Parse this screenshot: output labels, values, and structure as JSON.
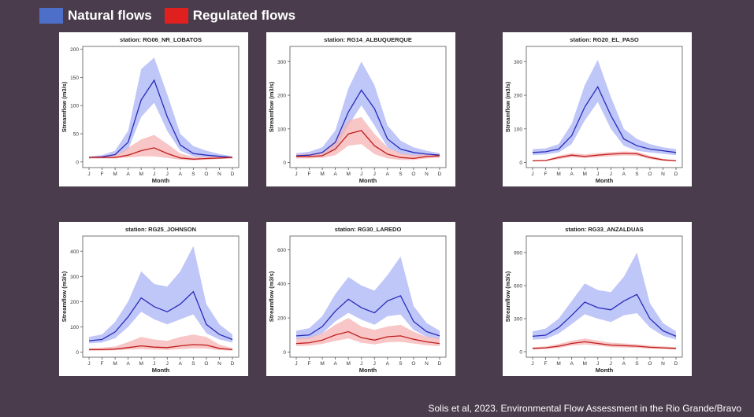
{
  "legend": {
    "items": [
      {
        "label": "Natural flows",
        "color": "#4e6fc9"
      },
      {
        "label": "Regulated flows",
        "color": "#e01f1f"
      }
    ]
  },
  "citation": "Solis et al, 2023. Environmental Flow Assessment in the Rio Grande/Bravo",
  "chart_data": [
    {
      "type": "line",
      "title": "station: RG06_NR_LOBATOS",
      "xlabel": "Month",
      "ylabel": "Streamflow (m3/s)",
      "categories": [
        "J",
        "F",
        "M",
        "A",
        "M",
        "J",
        "J",
        "A",
        "S",
        "O",
        "N",
        "D"
      ],
      "yticks": [
        0,
        50,
        100,
        150,
        200
      ],
      "ylim": [
        -10,
        205
      ],
      "series": [
        {
          "name": "Natural flows",
          "values": [
            8,
            9,
            13,
            35,
            110,
            145,
            80,
            30,
            15,
            12,
            10,
            8
          ],
          "lower": [
            6,
            7,
            10,
            22,
            80,
            105,
            55,
            20,
            10,
            8,
            7,
            6
          ],
          "upper": [
            10,
            12,
            20,
            55,
            165,
            185,
            120,
            50,
            28,
            20,
            14,
            10
          ]
        },
        {
          "name": "Regulated flows",
          "values": [
            8,
            8,
            8,
            12,
            20,
            25,
            15,
            7,
            5,
            6,
            7,
            8
          ],
          "lower": [
            6,
            6,
            6,
            8,
            10,
            10,
            7,
            4,
            3,
            4,
            5,
            6
          ],
          "upper": [
            10,
            11,
            12,
            25,
            40,
            48,
            32,
            15,
            9,
            9,
            10,
            10
          ]
        }
      ]
    },
    {
      "type": "line",
      "title": "station: RG14_ALBUQUERQUE",
      "xlabel": "Month",
      "ylabel": "Streamflow (m3/s)",
      "categories": [
        "J",
        "F",
        "M",
        "A",
        "M",
        "J",
        "J",
        "A",
        "S",
        "O",
        "N",
        "D"
      ],
      "yticks": [
        0,
        100,
        200,
        300
      ],
      "ylim": [
        -15,
        345
      ],
      "series": [
        {
          "name": "Natural flows",
          "values": [
            20,
            22,
            30,
            60,
            150,
            215,
            160,
            70,
            40,
            30,
            25,
            22
          ],
          "lower": [
            15,
            16,
            22,
            40,
            110,
            170,
            110,
            45,
            25,
            20,
            18,
            16
          ],
          "upper": [
            28,
            32,
            45,
            95,
            220,
            300,
            230,
            110,
            65,
            45,
            35,
            28
          ]
        },
        {
          "name": "Regulated flows",
          "values": [
            18,
            18,
            20,
            40,
            85,
            95,
            50,
            25,
            15,
            12,
            18,
            20
          ],
          "lower": [
            12,
            12,
            14,
            22,
            50,
            55,
            25,
            12,
            8,
            8,
            12,
            14
          ],
          "upper": [
            24,
            26,
            30,
            65,
            125,
            135,
            85,
            45,
            28,
            22,
            25,
            26
          ]
        }
      ]
    },
    {
      "type": "line",
      "title": "station: RG20_EL_PASO",
      "xlabel": "Month",
      "ylabel": "Streamflow (m3/s)",
      "categories": [
        "J",
        "F",
        "M",
        "A",
        "M",
        "J",
        "J",
        "A",
        "S",
        "O",
        "N",
        "D"
      ],
      "yticks": [
        0,
        100,
        200,
        300
      ],
      "ylim": [
        -15,
        345
      ],
      "series": [
        {
          "name": "Natural flows",
          "values": [
            30,
            32,
            40,
            80,
            165,
            225,
            140,
            70,
            50,
            40,
            35,
            30
          ],
          "lower": [
            22,
            24,
            30,
            55,
            125,
            180,
            100,
            50,
            35,
            30,
            26,
            22
          ],
          "upper": [
            40,
            42,
            55,
            115,
            230,
            305,
            195,
            100,
            70,
            55,
            45,
            40
          ]
        },
        {
          "name": "Regulated flows",
          "values": [
            5,
            6,
            15,
            22,
            18,
            22,
            25,
            27,
            26,
            15,
            8,
            5
          ],
          "lower": [
            3,
            4,
            10,
            16,
            13,
            16,
            19,
            21,
            20,
            10,
            5,
            3
          ],
          "upper": [
            7,
            8,
            20,
            28,
            24,
            28,
            31,
            33,
            32,
            20,
            11,
            7
          ]
        }
      ]
    },
    {
      "type": "line",
      "title": "station: RG25_JOHNSON",
      "xlabel": "Month",
      "ylabel": "Streamflow (m3/s)",
      "categories": [
        "J",
        "F",
        "M",
        "A",
        "M",
        "J",
        "J",
        "A",
        "S",
        "O",
        "N",
        "D"
      ],
      "yticks": [
        0,
        100,
        200,
        300,
        400
      ],
      "ylim": [
        -20,
        460
      ],
      "series": [
        {
          "name": "Natural flows",
          "values": [
            45,
            50,
            80,
            140,
            215,
            180,
            160,
            190,
            240,
            110,
            70,
            50
          ],
          "lower": [
            35,
            38,
            55,
            100,
            160,
            130,
            110,
            130,
            150,
            75,
            50,
            38
          ],
          "upper": [
            60,
            70,
            120,
            200,
            320,
            270,
            260,
            320,
            420,
            190,
            110,
            70
          ]
        },
        {
          "name": "Regulated flows",
          "values": [
            10,
            10,
            12,
            18,
            25,
            20,
            18,
            25,
            30,
            28,
            15,
            10
          ],
          "lower": [
            6,
            6,
            7,
            10,
            12,
            10,
            9,
            12,
            15,
            14,
            8,
            6
          ],
          "upper": [
            16,
            18,
            22,
            40,
            60,
            50,
            45,
            60,
            70,
            60,
            30,
            16
          ]
        }
      ]
    },
    {
      "type": "line",
      "title": "station: RG30_LAREDO",
      "xlabel": "Month",
      "ylabel": "Streamflow (m3/s)",
      "categories": [
        "J",
        "F",
        "M",
        "A",
        "M",
        "J",
        "J",
        "A",
        "S",
        "O",
        "N",
        "D"
      ],
      "yticks": [
        0,
        200,
        400,
        600
      ],
      "ylim": [
        -30,
        680
      ],
      "series": [
        {
          "name": "Natural flows",
          "values": [
            95,
            100,
            150,
            240,
            310,
            260,
            230,
            300,
            330,
            180,
            120,
            95
          ],
          "lower": [
            75,
            78,
            110,
            180,
            230,
            190,
            160,
            210,
            220,
            130,
            90,
            75
          ],
          "upper": [
            125,
            140,
            210,
            340,
            440,
            390,
            360,
            450,
            560,
            270,
            170,
            125
          ]
        },
        {
          "name": "Regulated flows",
          "values": [
            50,
            55,
            70,
            100,
            120,
            85,
            70,
            90,
            95,
            75,
            60,
            50
          ],
          "lower": [
            35,
            38,
            48,
            65,
            80,
            55,
            45,
            58,
            60,
            50,
            40,
            35
          ],
          "upper": [
            80,
            85,
            110,
            160,
            200,
            150,
            130,
            150,
            160,
            120,
            90,
            80
          ]
        }
      ]
    },
    {
      "type": "line",
      "title": "station: RG33_ANZALDUAS",
      "xlabel": "Month",
      "ylabel": "Streamflow (m3/s)",
      "categories": [
        "J",
        "F",
        "M",
        "A",
        "M",
        "J",
        "J",
        "A",
        "S",
        "O",
        "N",
        "D"
      ],
      "yticks": [
        0,
        300,
        600,
        900
      ],
      "ylim": [
        -50,
        1050
      ],
      "series": [
        {
          "name": "Natural flows",
          "values": [
            140,
            150,
            220,
            330,
            450,
            400,
            380,
            460,
            520,
            300,
            190,
            140
          ],
          "lower": [
            110,
            115,
            165,
            250,
            340,
            300,
            270,
            330,
            350,
            220,
            145,
            110
          ],
          "upper": [
            185,
            210,
            300,
            460,
            620,
            560,
            540,
            680,
            900,
            440,
            260,
            185
          ]
        },
        {
          "name": "Regulated flows",
          "values": [
            30,
            35,
            50,
            75,
            90,
            75,
            60,
            55,
            50,
            40,
            35,
            30
          ],
          "lower": [
            20,
            24,
            35,
            55,
            65,
            55,
            42,
            38,
            35,
            28,
            24,
            20
          ],
          "upper": [
            42,
            48,
            70,
            100,
            120,
            100,
            82,
            75,
            68,
            55,
            48,
            42
          ]
        }
      ]
    }
  ]
}
